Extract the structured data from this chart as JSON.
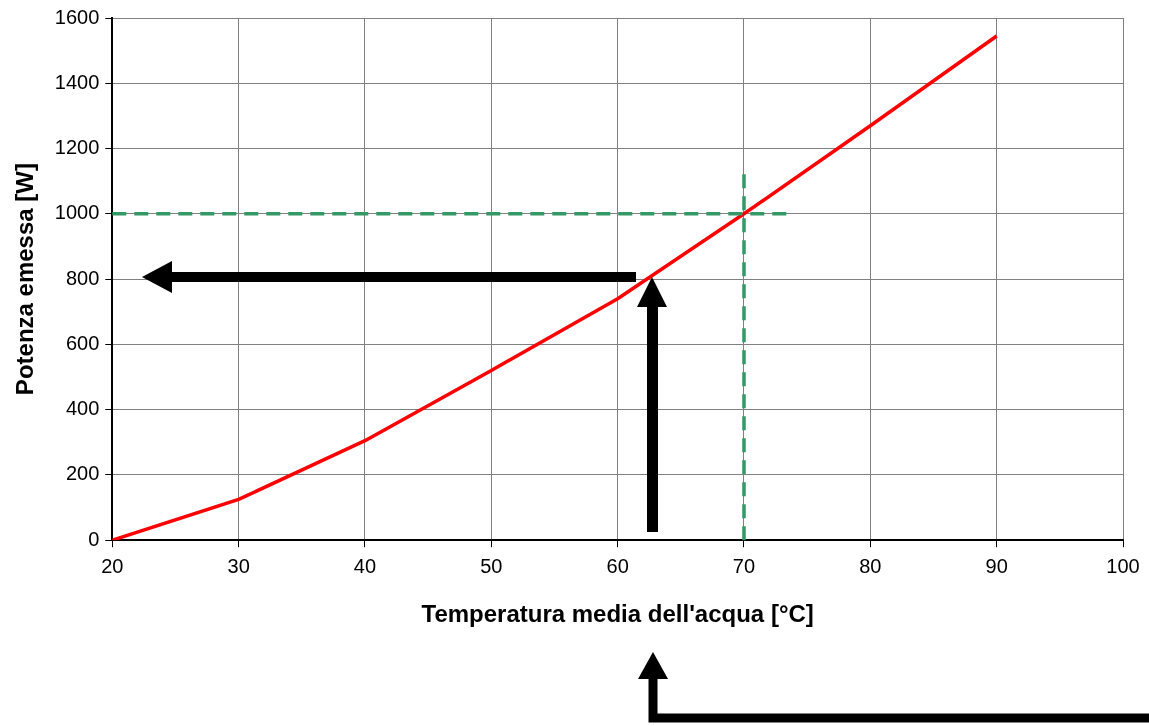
{
  "chart_data": {
    "type": "line",
    "xlabel": "Temperatura media dell'acqua [°C]",
    "ylabel": "Potenza emessa [W]",
    "x": [
      20,
      30,
      40,
      50,
      60,
      70,
      80,
      90
    ],
    "series": [
      {
        "color": "#ff0000",
        "values": [
          0,
          125,
          305,
          520,
          740,
          1000,
          1270,
          1545
        ]
      }
    ],
    "xlim": [
      20,
      100
    ],
    "xticks": [
      20,
      30,
      40,
      50,
      60,
      70,
      80,
      90,
      100
    ],
    "ylim": [
      0,
      1600
    ],
    "yticks": [
      0,
      200,
      400,
      600,
      800,
      1000,
      1200,
      1400,
      1600
    ],
    "ref_lines": [
      {
        "axis": "y",
        "value": 1000,
        "color": "#339966",
        "line_style": "dashed"
      },
      {
        "axis": "x",
        "value": 70,
        "color": "#339966",
        "line_style": "dashed"
      }
    ],
    "grid": true,
    "legend": false,
    "marker": "none",
    "line_style": "solid"
  }
}
